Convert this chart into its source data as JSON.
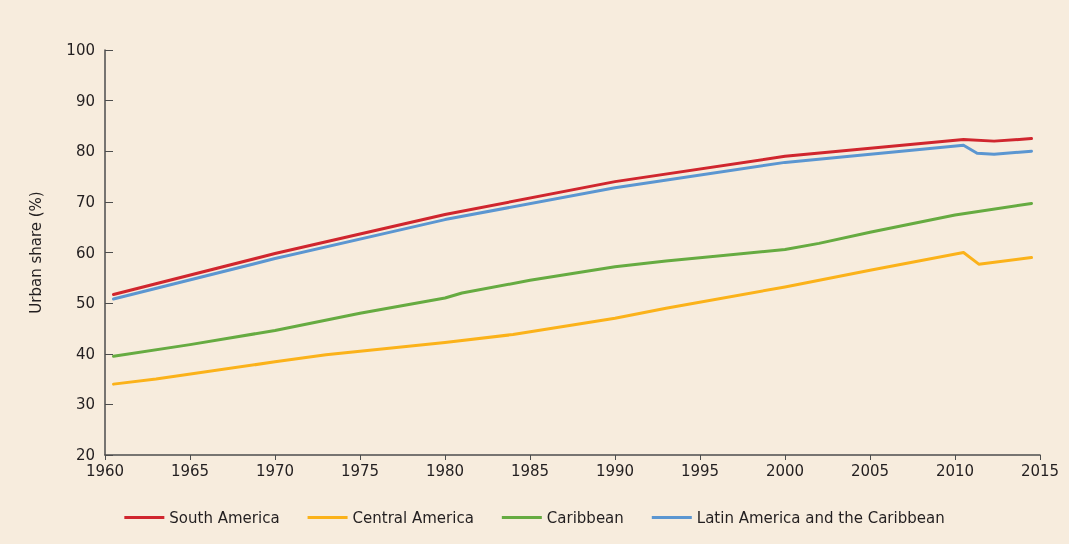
{
  "chart_data": {
    "type": "line",
    "ylabel": "Urban share (%)",
    "xlim": [
      1960,
      2015
    ],
    "xticks": [
      1960,
      1965,
      1970,
      1975,
      1980,
      1985,
      1990,
      1995,
      2000,
      2005,
      2010,
      2015
    ],
    "ylim": [
      20,
      100
    ],
    "yticks": [
      20,
      30,
      40,
      50,
      60,
      70,
      80,
      90,
      100
    ],
    "grid": false,
    "legend": "bottom",
    "marker": "none",
    "line_style": "solid",
    "series": [
      {
        "name": "South America",
        "color": "#d0262e",
        "x": [
          1960.5,
          1970,
          1980,
          1990,
          2000,
          2010.5,
          2012.3,
          2014.5
        ],
        "values": [
          51.7,
          59.8,
          67.5,
          74,
          79,
          82.3,
          82,
          82.5
        ]
      },
      {
        "name": "Central America",
        "color": "#fbb21a",
        "x": [
          1960.5,
          1963,
          1970,
          1973,
          1980,
          1984,
          1990,
          1993,
          2000,
          2005,
          2010.5,
          2011.4,
          2014.5
        ],
        "values": [
          34,
          35,
          38.4,
          39.8,
          42.2,
          43.8,
          47,
          49,
          53.2,
          56.5,
          60,
          57.7,
          59
        ]
      },
      {
        "name": "Caribbean",
        "color": "#66ab41",
        "x": [
          1960.5,
          1965,
          1970,
          1975,
          1980,
          1981,
          1985,
          1990,
          1993,
          2000,
          2002,
          2005,
          2010,
          2014.5
        ],
        "values": [
          39.5,
          41.8,
          44.6,
          48,
          51,
          52,
          54.5,
          57.2,
          58.3,
          60.6,
          61.8,
          64,
          67.4,
          69.7
        ]
      },
      {
        "name": "Latin America and the Caribbean",
        "color": "#5b96d1",
        "x": [
          1960.5,
          1970,
          1980,
          1990,
          2000,
          2010.5,
          2011.3,
          2012.3,
          2014.5
        ],
        "values": [
          50.8,
          58.8,
          66.5,
          72.8,
          77.8,
          81.2,
          79.6,
          79.4,
          80
        ]
      }
    ]
  }
}
